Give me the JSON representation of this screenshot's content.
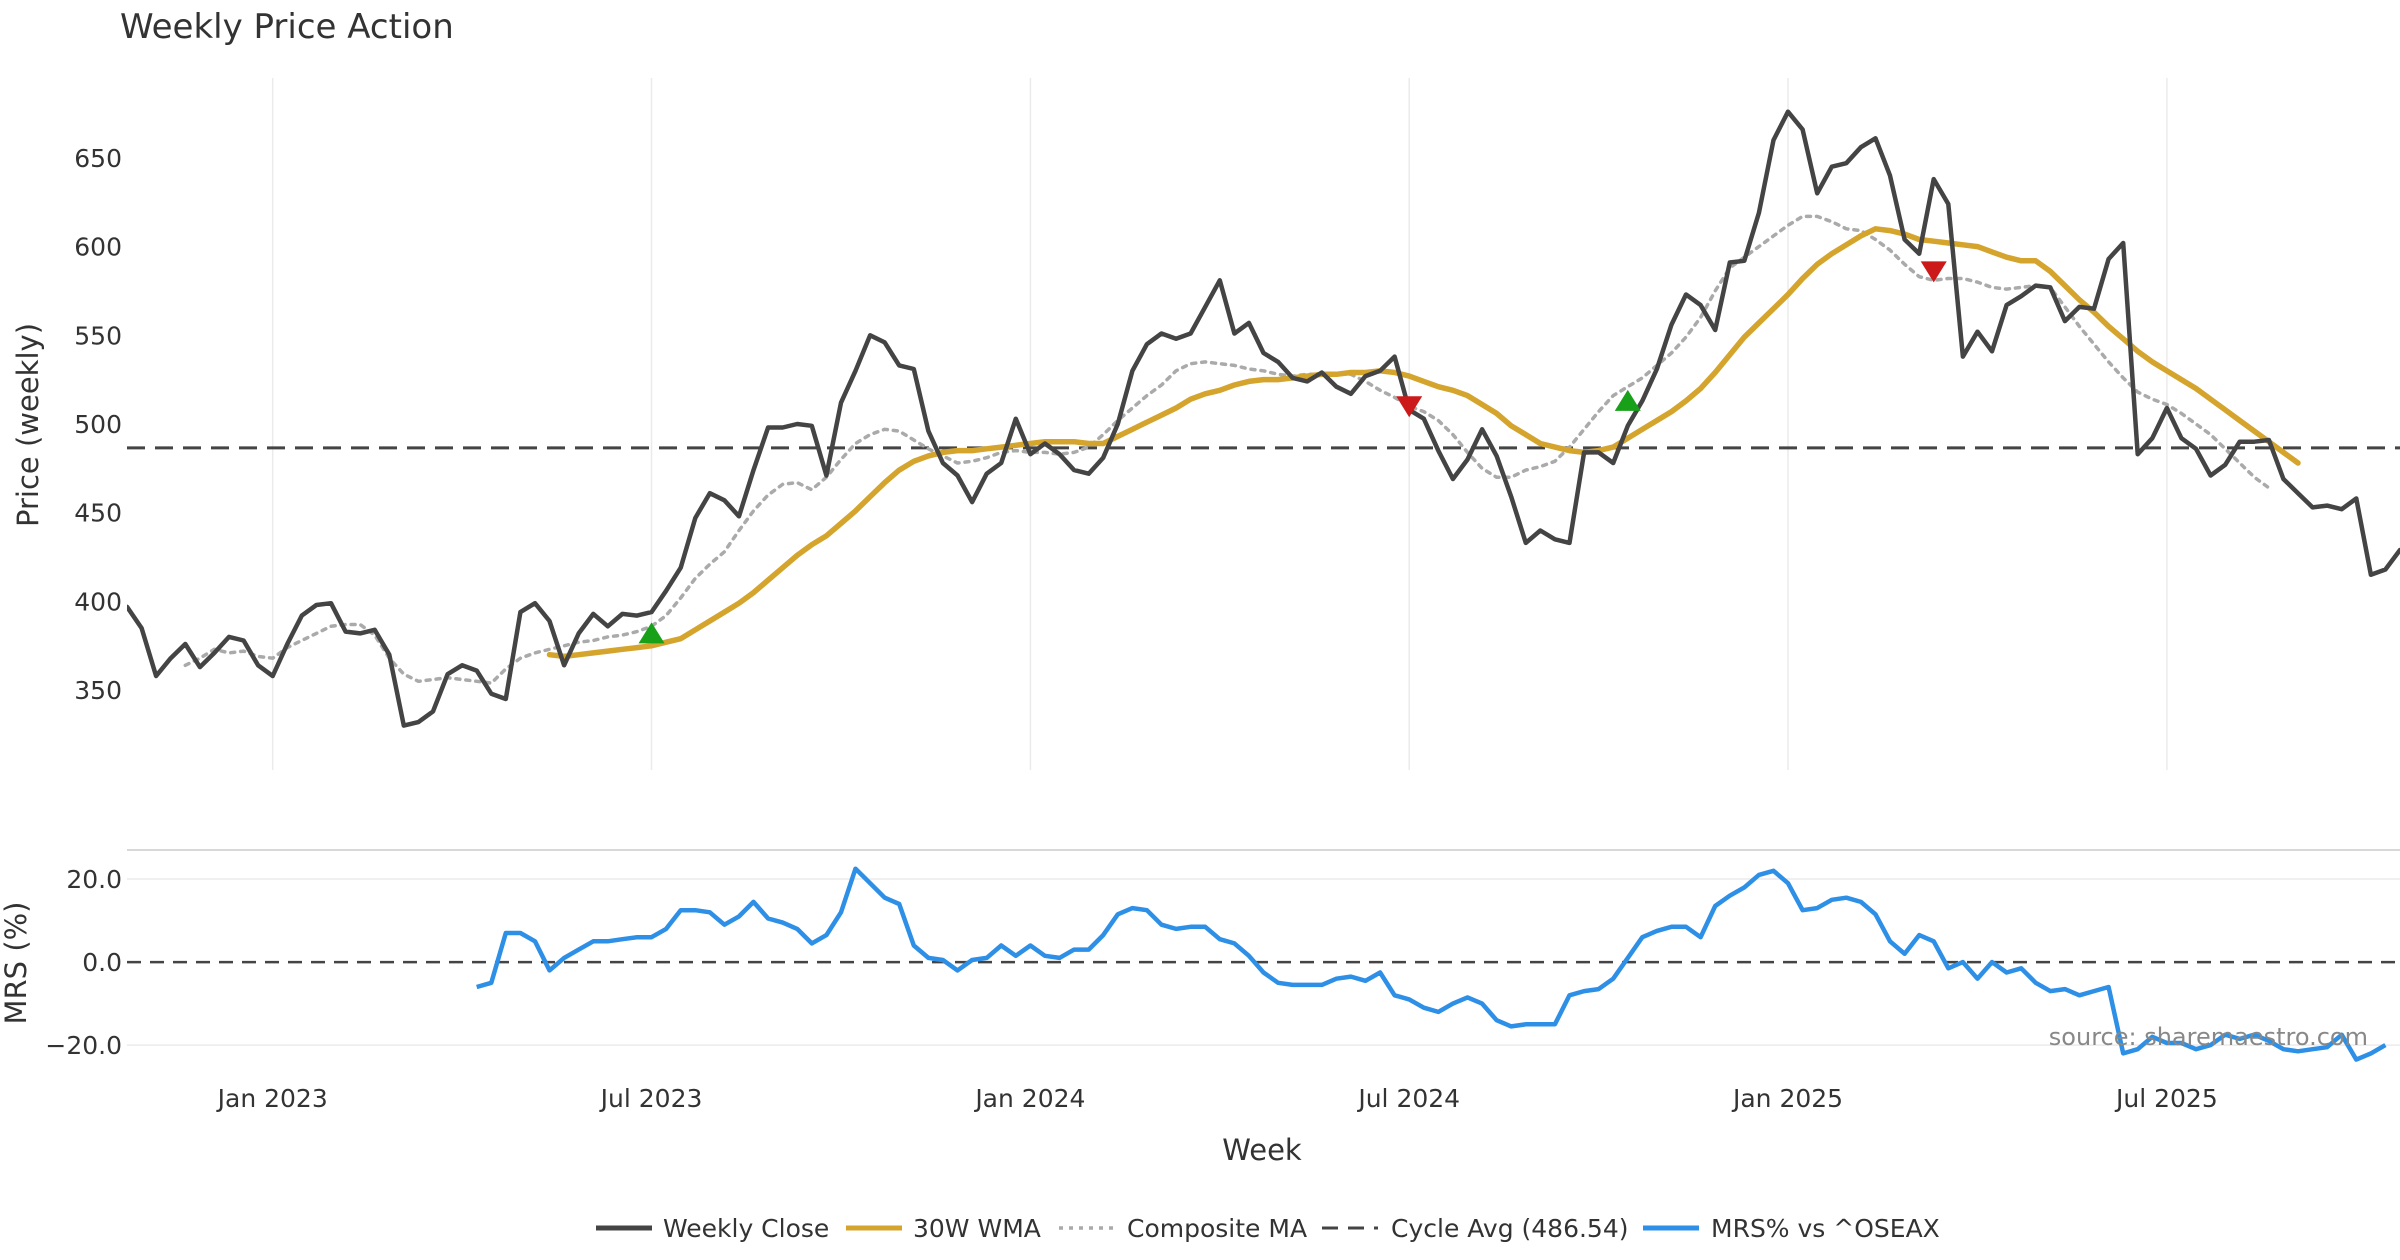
{
  "chart_data": {
    "type": "line",
    "title": "Weekly Price Action",
    "source_label": "source: sharemaestro.com",
    "xlabel": "Week",
    "x_ticks": [
      {
        "label": "Jan 2023",
        "week": 11
      },
      {
        "label": "Jul 2023",
        "week": 37
      },
      {
        "label": "Jan 2024",
        "week": 63
      },
      {
        "label": "Jul 2024",
        "week": 89
      },
      {
        "label": "Jan 2025",
        "week": 115
      },
      {
        "label": "Jul 2025",
        "week": 141
      }
    ],
    "x_range": [
      1,
      157
    ],
    "price_panel": {
      "ylabel": "Price (weekly)",
      "ylim": [
        305,
        695
      ],
      "yticks": [
        350,
        400,
        450,
        500,
        550,
        600,
        650
      ],
      "cycle_avg": 486.54,
      "markers": [
        {
          "type": "buy",
          "week": 37,
          "value": 382
        },
        {
          "type": "sell",
          "week": 89,
          "value": 510
        },
        {
          "type": "buy",
          "week": 104,
          "value": 513
        },
        {
          "type": "sell",
          "week": 125,
          "value": 586
        }
      ],
      "series": [
        {
          "name": "Weekly Close",
          "color": "#444444",
          "start_week": 1,
          "values": [
            397,
            385,
            358,
            368,
            376,
            363,
            371,
            380,
            378,
            364,
            358,
            376,
            392,
            398,
            399,
            383,
            382,
            384,
            370,
            330,
            332,
            338,
            359,
            364,
            361,
            348,
            345,
            394,
            399,
            389,
            364,
            382,
            393,
            386,
            393,
            392,
            394,
            406,
            419,
            447,
            461,
            457,
            448,
            474,
            498,
            498,
            500,
            499,
            471,
            512,
            530,
            550,
            546,
            533,
            531,
            496,
            478,
            471,
            456,
            472,
            478,
            503,
            483,
            489,
            483,
            474,
            472,
            481,
            500,
            530,
            545,
            551,
            548,
            551,
            566,
            581,
            551,
            557,
            540,
            535,
            526,
            524,
            529,
            521,
            517,
            527,
            530,
            538,
            508,
            503,
            485,
            469,
            480,
            497,
            482,
            459,
            433,
            440,
            435,
            433,
            484,
            484,
            478,
            499,
            513,
            531,
            556,
            573,
            567,
            553,
            591,
            592,
            619,
            660,
            676,
            666,
            630,
            645,
            647,
            656,
            661,
            640,
            604,
            596,
            638,
            624,
            538,
            552,
            541,
            567,
            572,
            578,
            577,
            558,
            566,
            565,
            593,
            602,
            483,
            492,
            509,
            492,
            486,
            471,
            477,
            490,
            490,
            491,
            469,
            461,
            453,
            454,
            452,
            458,
            415,
            418,
            429
          ]
        },
        {
          "name": "30W WMA",
          "color": "#d4a42c",
          "start_week": 30,
          "values": [
            370,
            369,
            370,
            371,
            372,
            373,
            374,
            375,
            377,
            379,
            384,
            389,
            394,
            399,
            405,
            412,
            419,
            426,
            432,
            437,
            444,
            451,
            459,
            467,
            474,
            479,
            482,
            484,
            485,
            485,
            486,
            487,
            488,
            489,
            490,
            490,
            490,
            489,
            489,
            493,
            497,
            501,
            505,
            509,
            514,
            517,
            519,
            522,
            524,
            525,
            525,
            526,
            527,
            528,
            528,
            529,
            529,
            530,
            529,
            527,
            524,
            521,
            519,
            516,
            511,
            506,
            499,
            494,
            489,
            487,
            485,
            484,
            485,
            487,
            492,
            497,
            502,
            507,
            513,
            520,
            529,
            539,
            549,
            557,
            565,
            573,
            582,
            590,
            596,
            601,
            606,
            610,
            609,
            607,
            604,
            603,
            602,
            601,
            600,
            597,
            594,
            592,
            592,
            586,
            578,
            570,
            563,
            555,
            548,
            541,
            535,
            530,
            525,
            520,
            514,
            508,
            502,
            496,
            490,
            484,
            478
          ]
        },
        {
          "name": "Composite MA",
          "color": "#aaaaaa",
          "start_week": 5,
          "values": [
            364,
            368,
            373,
            371,
            372,
            369,
            368,
            374,
            378,
            382,
            386,
            387,
            387,
            381,
            368,
            359,
            355,
            356,
            357,
            356,
            355,
            354,
            362,
            368,
            371,
            373,
            375,
            377,
            378,
            380,
            381,
            383,
            386,
            392,
            402,
            413,
            421,
            428,
            440,
            451,
            460,
            466,
            467,
            463,
            470,
            480,
            489,
            494,
            497,
            496,
            491,
            486,
            482,
            478,
            479,
            481,
            484,
            485,
            484,
            484,
            483,
            484,
            487,
            494,
            502,
            509,
            516,
            522,
            530,
            534,
            535,
            534,
            533,
            531,
            530,
            528,
            527,
            528,
            528,
            528,
            528,
            524,
            519,
            515,
            510,
            507,
            502,
            494,
            484,
            475,
            470,
            470,
            474,
            476,
            479,
            487,
            497,
            507,
            516,
            521,
            526,
            533,
            540,
            549,
            560,
            575,
            588,
            594,
            600,
            606,
            612,
            617,
            617,
            614,
            610,
            609,
            604,
            598,
            590,
            583,
            581,
            582,
            582,
            580,
            577,
            576,
            577,
            578,
            577,
            566,
            555,
            545,
            535,
            526,
            518,
            514,
            511,
            506,
            500,
            494,
            486,
            478,
            470,
            464
          ]
        },
        {
          "name": "Cycle Avg (486.54)",
          "color": "#444444",
          "dash": "dashed"
        }
      ]
    },
    "mrs_panel": {
      "ylabel": "MRS (%)",
      "ylim": [
        -26,
        27
      ],
      "yticks": [
        20.0,
        0.0,
        -20.0
      ],
      "ytick_labels": [
        "20.0",
        "0.0",
        "−20.0"
      ],
      "series": [
        {
          "name": "MRS% vs ^OSEAX",
          "color": "#2e8fe6",
          "start_week": 25,
          "values": [
            -6,
            -5,
            7,
            7,
            5,
            -2,
            1,
            3,
            5,
            5,
            5.5,
            6,
            6,
            8,
            12.5,
            12.5,
            12,
            9,
            11,
            14.5,
            10.5,
            9.5,
            8,
            4.5,
            6.5,
            12,
            22.5,
            19,
            15.5,
            14,
            4,
            1,
            0.5,
            -2,
            0.5,
            1,
            4,
            1.5,
            4,
            1.5,
            1,
            3,
            3,
            6.5,
            11.5,
            13,
            12.5,
            9,
            8,
            8.5,
            8.5,
            5.5,
            4.5,
            1.5,
            -2.5,
            -5,
            -5.5,
            -5.5,
            -5.5,
            -4,
            -3.5,
            -4.5,
            -2.5,
            -8,
            -9,
            -11,
            -12,
            -10,
            -8.5,
            -10,
            -14,
            -15.5,
            -15,
            -15,
            -15,
            -8,
            -7,
            -6.5,
            -4,
            1,
            6,
            7.5,
            8.5,
            8.5,
            6,
            13.5,
            16,
            18,
            21,
            22,
            19,
            12.5,
            13,
            15,
            15.5,
            14.5,
            11.5,
            5,
            2,
            6.5,
            5,
            -1.5,
            0,
            -4,
            0,
            -2.5,
            -1.5,
            -5,
            -7,
            -6.5,
            -8,
            -7,
            -6,
            -22,
            -21,
            -18,
            -19.5,
            -19.5,
            -21,
            -20,
            -17.5,
            -18.5,
            -17.5,
            -19,
            -21,
            -21.5,
            -21,
            -20.5,
            -17.5,
            -23.5,
            -22,
            -20
          ]
        },
        {
          "name": "zero line",
          "color": "#444444",
          "dash": "dashed",
          "value": 0
        }
      ]
    },
    "legend": [
      {
        "label": "Weekly Close",
        "color": "#444444",
        "style": "solid"
      },
      {
        "label": "30W WMA",
        "color": "#d4a42c",
        "style": "solid"
      },
      {
        "label": "Composite MA",
        "color": "#aaaaaa",
        "style": "dotted"
      },
      {
        "label": "Cycle Avg (486.54)",
        "color": "#444444",
        "style": "dashed"
      },
      {
        "label": "MRS% vs ^OSEAX",
        "color": "#2e8fe6",
        "style": "solid"
      }
    ],
    "colors": {
      "buy": "#18a018",
      "sell": "#cc1a1a",
      "grid": "#ebebeb",
      "separator": "#cccccc"
    }
  }
}
